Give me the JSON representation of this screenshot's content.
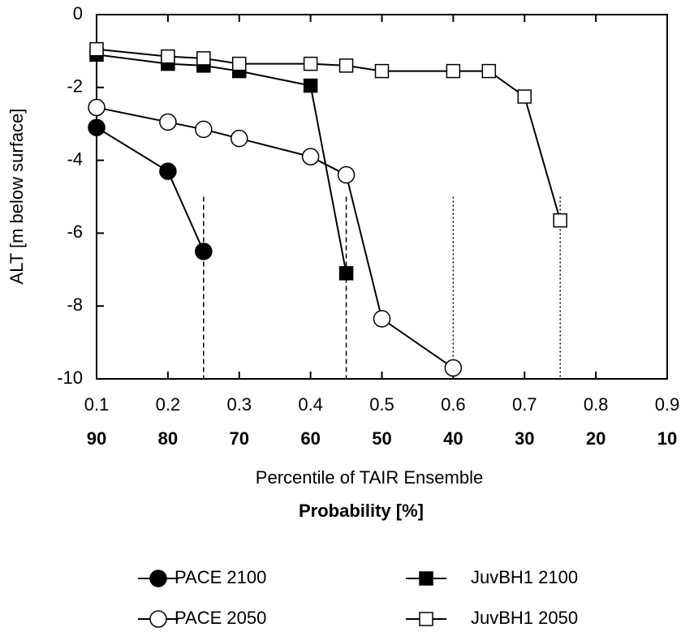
{
  "chart_data": {
    "type": "line",
    "x_label": "Percentile of TAIR Ensemble",
    "x_label_2": "Probability [%]",
    "y_label": "ALT [m below surface]",
    "xlim": [
      0.1,
      0.9
    ],
    "ylim": [
      -10,
      0
    ],
    "xticks": [
      0.1,
      0.2,
      0.3,
      0.4,
      0.5,
      0.6,
      0.7,
      0.8,
      0.9
    ],
    "probability_ticks": [
      {
        "value": 0.1,
        "label": "90"
      },
      {
        "value": 0.2,
        "label": "80"
      },
      {
        "value": 0.3,
        "label": "70"
      },
      {
        "value": 0.4,
        "label": "60"
      },
      {
        "value": 0.5,
        "label": "50"
      },
      {
        "value": 0.6,
        "label": "40"
      },
      {
        "value": 0.7,
        "label": "30"
      },
      {
        "value": 0.8,
        "label": "20"
      },
      {
        "value": 0.9,
        "label": "10"
      }
    ],
    "yticks": [
      0,
      -2,
      -4,
      -6,
      -8,
      -10
    ],
    "series": [
      {
        "name": "PACE 2100",
        "color": "#000000",
        "marker": "circle",
        "fill": "#000000",
        "x": [
          0.1,
          0.2,
          0.25
        ],
        "values": [
          -3.1,
          -4.3,
          -6.5
        ]
      },
      {
        "name": "PACE 2050",
        "color": "#000000",
        "marker": "circle",
        "fill": "#ffffff",
        "x": [
          0.1,
          0.2,
          0.25,
          0.3,
          0.4,
          0.45,
          0.5,
          0.6
        ],
        "values": [
          -2.55,
          -2.95,
          -3.15,
          -3.4,
          -3.9,
          -4.4,
          -8.35,
          -9.7
        ]
      },
      {
        "name": "JuvBH1 2100",
        "color": "#000000",
        "marker": "square",
        "fill": "#000000",
        "x": [
          0.1,
          0.2,
          0.25,
          0.3,
          0.4,
          0.45
        ],
        "values": [
          -1.1,
          -1.35,
          -1.4,
          -1.55,
          -1.95,
          -7.1
        ]
      },
      {
        "name": "JuvBH1 2050",
        "color": "#000000",
        "marker": "square",
        "fill": "#ffffff",
        "x": [
          0.1,
          0.2,
          0.25,
          0.3,
          0.4,
          0.45,
          0.5,
          0.6,
          0.65,
          0.7,
          0.75
        ],
        "values": [
          -0.95,
          -1.15,
          -1.2,
          -1.35,
          -1.35,
          -1.4,
          -1.55,
          -1.55,
          -1.55,
          -2.25,
          -5.65
        ]
      }
    ],
    "reference_lines": [
      {
        "x": 0.25,
        "y": [
          -5,
          -10
        ],
        "style": "dashed"
      },
      {
        "x": 0.45,
        "y": [
          -5,
          -10
        ],
        "style": "dashed"
      },
      {
        "x": 0.6,
        "y": [
          -5,
          -10
        ],
        "style": "dotted"
      },
      {
        "x": 0.75,
        "y": [
          -5,
          -10
        ],
        "style": "dotted"
      }
    ]
  }
}
